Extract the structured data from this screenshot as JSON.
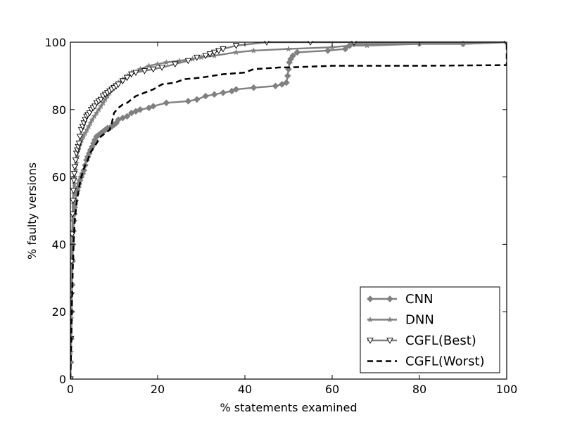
{
  "chart_data": {
    "type": "line",
    "xlabel": "%  statements examined",
    "ylabel": "% faulty versions",
    "xlim": [
      0,
      100
    ],
    "ylim": [
      0,
      100
    ],
    "xticks": [
      0,
      20,
      40,
      60,
      80,
      100
    ],
    "yticks": [
      0,
      20,
      40,
      60,
      80,
      100
    ],
    "grid": false,
    "legend_position": "lower-right",
    "series": [
      {
        "name": "CNN",
        "color": "#808080",
        "line_style": "solid",
        "marker": "diamond",
        "x": [
          0,
          0.1,
          0.2,
          0.3,
          0.4,
          0.5,
          0.6,
          0.7,
          0.8,
          0.9,
          1.0,
          1.2,
          1.4,
          1.6,
          1.8,
          2.0,
          2.2,
          2.5,
          2.8,
          3.1,
          3.4,
          3.7,
          4.0,
          4.3,
          4.6,
          5.0,
          5.3,
          5.6,
          6.0,
          6.5,
          7.0,
          7.5,
          8.0,
          8.5,
          9.0,
          9.5,
          10.0,
          10.5,
          11.0,
          12.0,
          13.0,
          14.0,
          15.0,
          16.0,
          18.0,
          19.0,
          22.0,
          27.0,
          29.0,
          31.0,
          33.0,
          35.0,
          37.0,
          38.0,
          42.0,
          47.0,
          48.5,
          49.5,
          49.8,
          50.0,
          50.2,
          50.5,
          51.0,
          52.0,
          59.0,
          63.0,
          64.0,
          65.0,
          90.0,
          100.0
        ],
        "y": [
          0,
          5,
          12,
          20,
          28,
          35,
          40,
          44,
          47,
          49,
          51,
          53,
          55,
          56,
          57,
          58,
          59,
          60,
          61,
          62,
          63.5,
          65,
          66,
          67,
          68,
          69,
          70,
          71,
          72,
          72.5,
          73,
          73.5,
          74,
          74.5,
          74.5,
          75,
          75.5,
          76,
          77,
          77.5,
          78,
          79,
          79.5,
          80,
          80.5,
          81,
          82,
          82.5,
          83,
          84,
          84.5,
          85,
          85.5,
          86,
          86.5,
          87,
          87.5,
          88,
          90,
          92,
          94,
          95,
          96,
          97,
          97.5,
          98,
          99,
          99.5,
          99.5,
          100
        ]
      },
      {
        "name": "DNN",
        "color": "#808080",
        "line_style": "solid",
        "marker": "star",
        "x": [
          0,
          0.1,
          0.2,
          0.3,
          0.4,
          0.5,
          0.6,
          0.7,
          0.8,
          0.9,
          1.0,
          1.2,
          1.4,
          1.6,
          1.8,
          2.0,
          2.3,
          2.6,
          3.0,
          3.4,
          3.8,
          4.2,
          4.6,
          5.0,
          5.5,
          6.0,
          6.5,
          7.0,
          7.5,
          8.0,
          8.5,
          9.0,
          9.5,
          10.0,
          10.5,
          11.0,
          12.0,
          13.0,
          14.0,
          16.0,
          18.0,
          20.0,
          22.0,
          25.0,
          28.0,
          30.0,
          33.0,
          38.0,
          42.0,
          50.0,
          60.0,
          64.0,
          68.0,
          80.0,
          90.0,
          100.0
        ],
        "y": [
          0,
          8,
          18,
          28,
          36,
          43,
          48,
          52,
          55,
          58,
          60,
          62,
          64,
          66,
          68,
          69,
          70,
          71,
          72,
          73,
          74,
          75,
          76,
          77,
          78,
          79,
          80,
          81,
          82,
          83,
          84,
          85,
          86,
          87,
          87.5,
          88,
          89,
          90,
          91,
          92,
          93,
          93.5,
          94,
          94.5,
          95,
          95.5,
          96,
          97,
          97.5,
          98,
          98.5,
          99,
          99,
          99.5,
          99.5,
          100
        ]
      },
      {
        "name": "CGFL(Best)",
        "color": "#808080",
        "line_style": "solid",
        "marker": "triangle-down",
        "x": [
          0,
          0.1,
          0.2,
          0.3,
          0.4,
          0.5,
          0.6,
          0.7,
          0.8,
          0.9,
          1.0,
          1.2,
          1.4,
          1.6,
          1.8,
          2.0,
          2.2,
          2.5,
          2.8,
          3.1,
          3.4,
          3.7,
          4.0,
          4.4,
          4.8,
          5.2,
          5.6,
          6.0,
          6.5,
          7.0,
          7.5,
          8.0,
          8.5,
          9.0,
          9.5,
          10.0,
          10.5,
          11.0,
          12.0,
          13.0,
          14.0,
          15.0,
          17.0,
          19.0,
          21.0,
          24.0,
          27.0,
          29.0,
          31.0,
          32.0,
          33.0,
          34.0,
          35.0,
          38.0,
          45.0,
          55.0,
          65.0,
          100.0
        ],
        "y": [
          0,
          12,
          25,
          35,
          43,
          49,
          53,
          56,
          59,
          61,
          63,
          65,
          67,
          68,
          69,
          70,
          72,
          74,
          75,
          76,
          77,
          78,
          78.5,
          79,
          80,
          80.5,
          81,
          82,
          82.5,
          83,
          84,
          84.5,
          85,
          85.5,
          86,
          86.5,
          87,
          87.5,
          88.5,
          89.5,
          90.5,
          91,
          91.5,
          92,
          92.5,
          93.5,
          94.5,
          95.5,
          96,
          96.5,
          97,
          97.5,
          98,
          99,
          100,
          100,
          100,
          100
        ]
      },
      {
        "name": "CGFL(Worst)",
        "color": "#000000",
        "line_style": "dashed",
        "marker": "none",
        "x": [
          0,
          0.2,
          0.4,
          0.6,
          0.8,
          1.0,
          1.5,
          2.0,
          2.5,
          3.0,
          3.5,
          4.0,
          4.5,
          5.0,
          5.5,
          6.0,
          7.0,
          8.0,
          9.0,
          9.5,
          10.0,
          11.0,
          12.0,
          13.0,
          15.0,
          17.0,
          19.0,
          21.0,
          24.0,
          26.0,
          30.0,
          35.0,
          40.0,
          42.0,
          48.0,
          50.0,
          60.0,
          80.0,
          100.0,
          100.0
        ],
        "y": [
          0,
          10,
          25,
          35,
          42,
          47,
          53,
          57,
          60,
          62,
          64,
          65,
          67,
          68,
          69,
          70,
          72,
          73,
          74,
          76,
          79,
          80.5,
          81.5,
          82,
          84,
          85,
          86,
          87.5,
          88,
          89,
          89.5,
          90.5,
          91,
          92,
          92.5,
          92.5,
          93,
          93,
          93.2,
          100
        ]
      }
    ]
  }
}
